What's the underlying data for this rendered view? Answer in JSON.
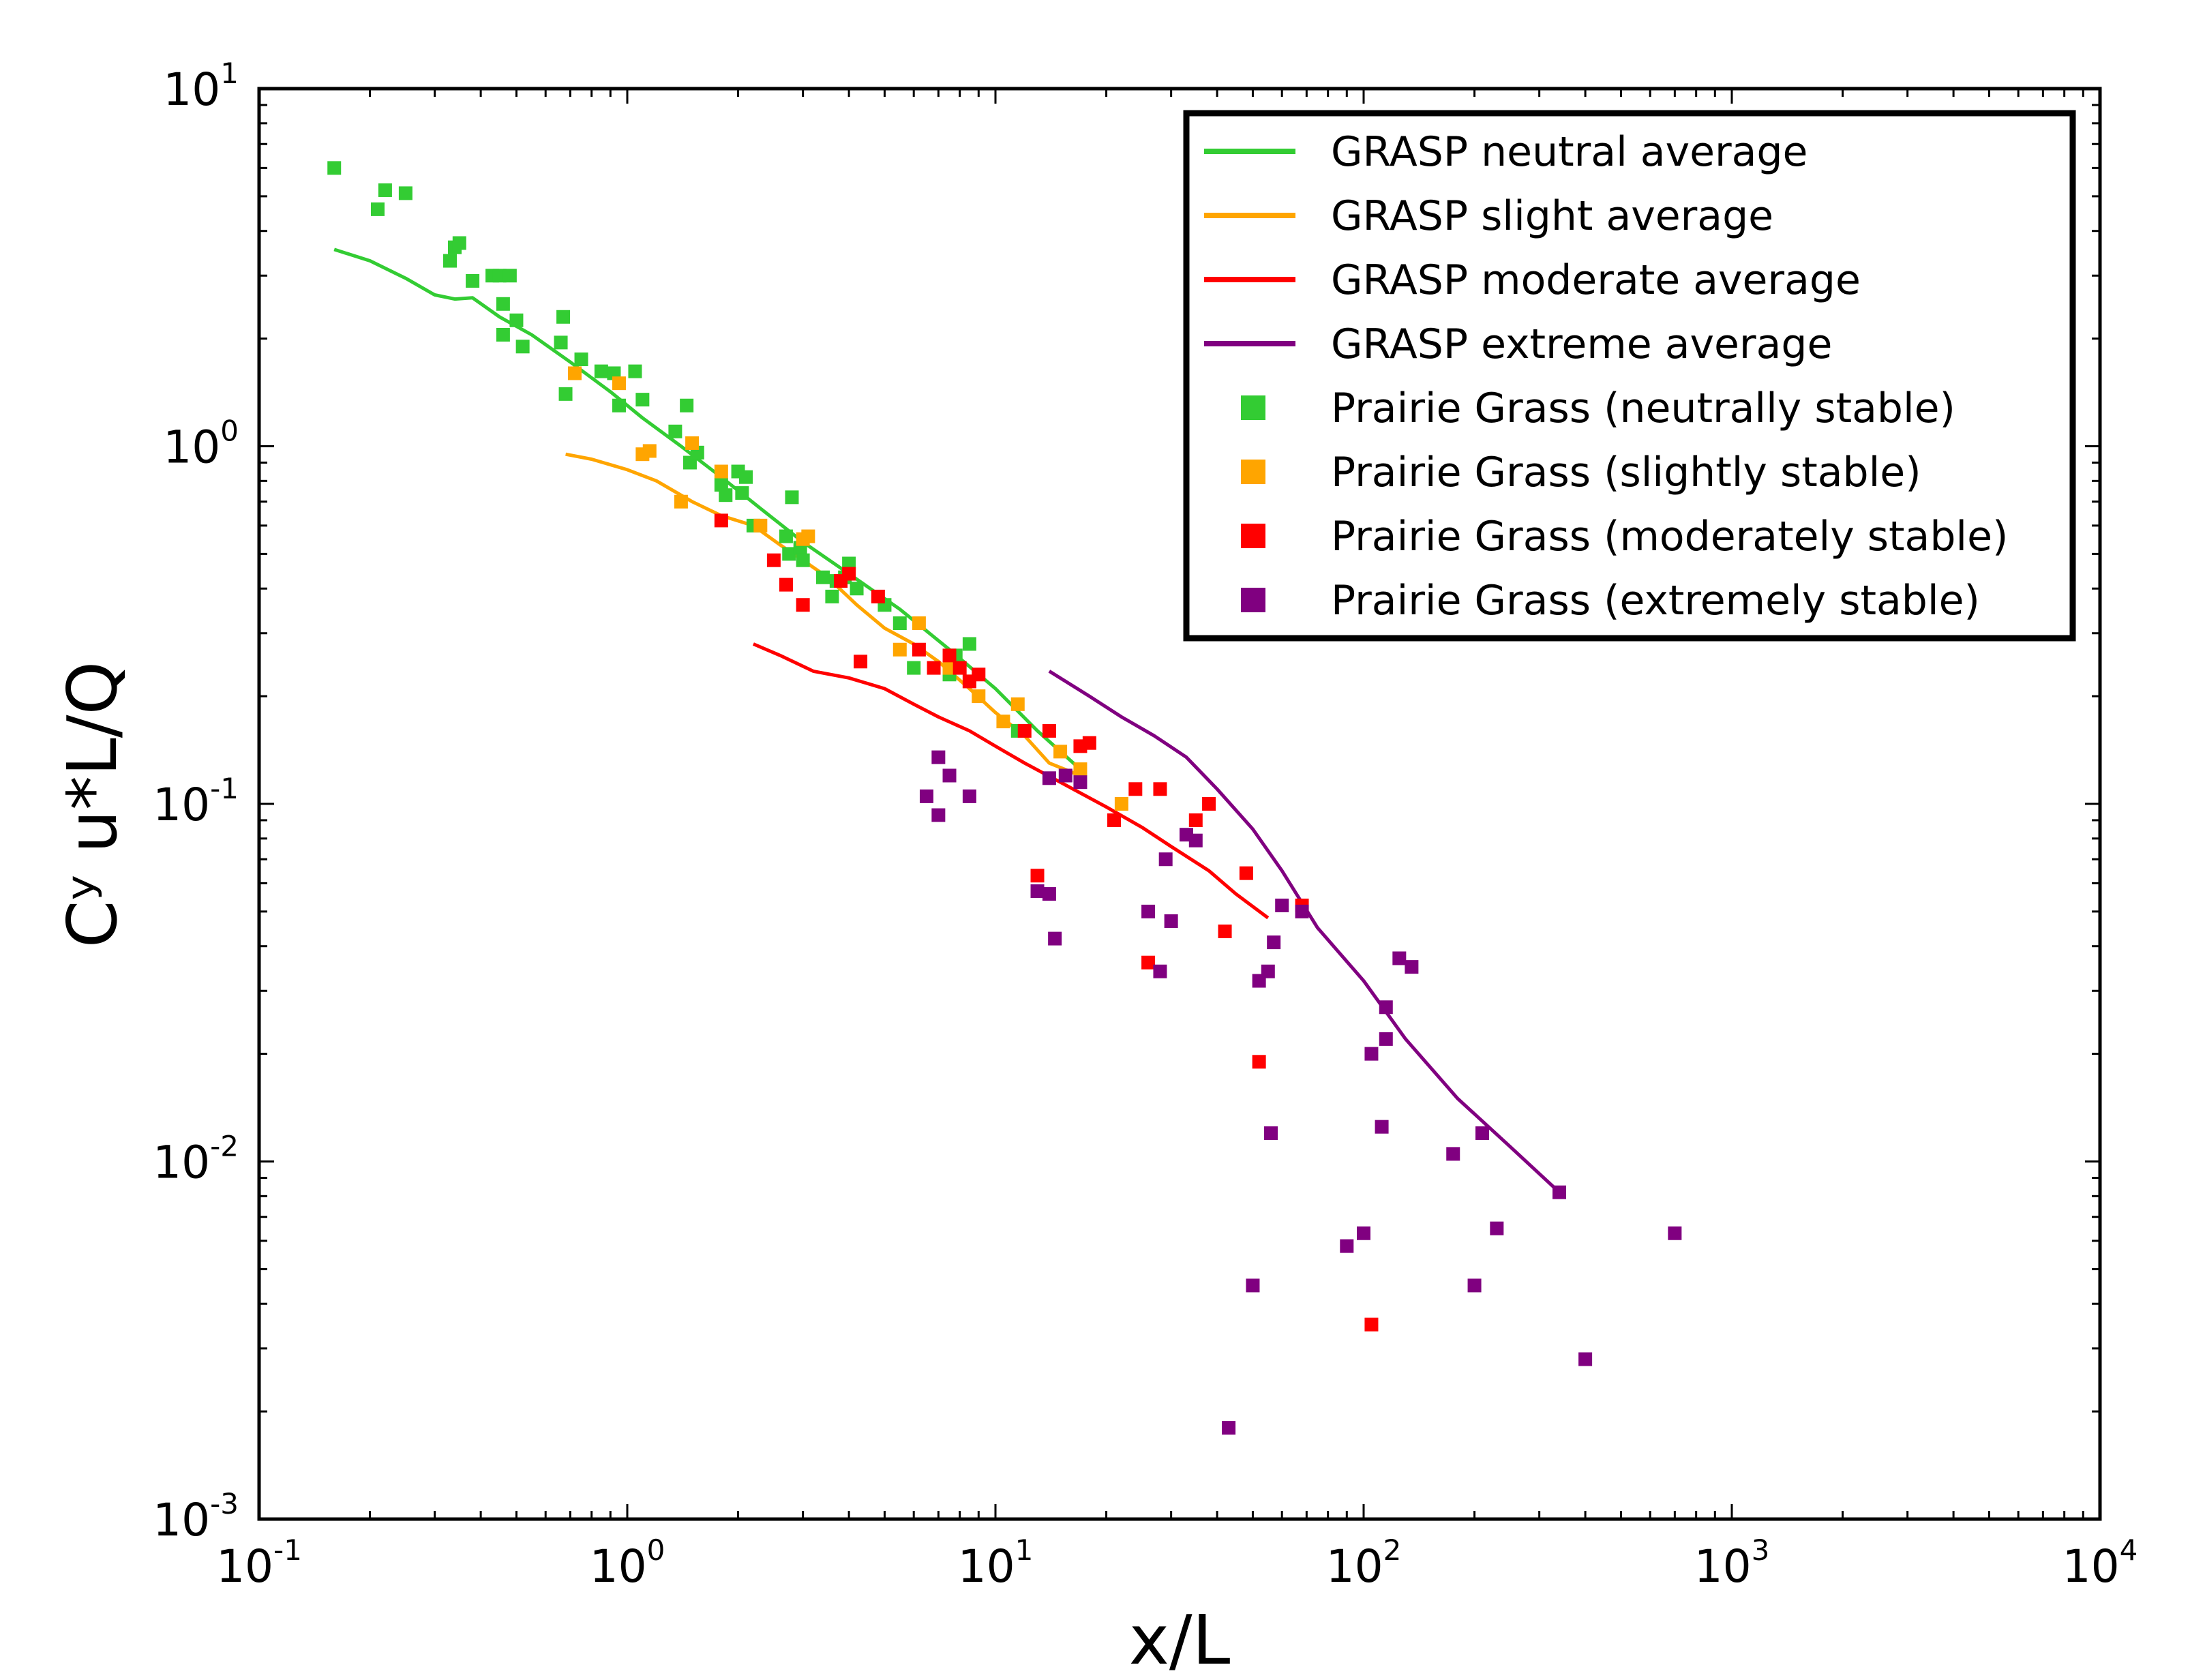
{
  "chart_data": {
    "type": "line+scatter",
    "title": "",
    "xlabel": "x/L",
    "ylabel": "Cʸ u*L/Q",
    "xscale": "log",
    "yscale": "log",
    "xlim": [
      0.1,
      10000
    ],
    "ylim": [
      0.001,
      10
    ],
    "grid": false,
    "legend_position": "top-right",
    "x_ticks": [
      {
        "base": "10",
        "exp": "-1",
        "value": 0.1
      },
      {
        "base": "10",
        "exp": "0",
        "value": 1
      },
      {
        "base": "10",
        "exp": "1",
        "value": 10
      },
      {
        "base": "10",
        "exp": "2",
        "value": 100
      },
      {
        "base": "10",
        "exp": "3",
        "value": 1000
      },
      {
        "base": "10",
        "exp": "4",
        "value": 10000
      }
    ],
    "y_ticks": [
      {
        "base": "10",
        "exp": "-3",
        "value": 0.001
      },
      {
        "base": "10",
        "exp": "-2",
        "value": 0.01
      },
      {
        "base": "10",
        "exp": "-1",
        "value": 0.1
      },
      {
        "base": "10",
        "exp": "0",
        "value": 1
      },
      {
        "base": "10",
        "exp": "1",
        "value": 10
      }
    ],
    "lines": [
      {
        "name": "GRASP neutral average",
        "color": "#33cc33",
        "points": [
          [
            0.16,
            3.55
          ],
          [
            0.2,
            3.3
          ],
          [
            0.25,
            2.95
          ],
          [
            0.3,
            2.65
          ],
          [
            0.34,
            2.58
          ],
          [
            0.38,
            2.6
          ],
          [
            0.45,
            2.3
          ],
          [
            0.55,
            2.05
          ],
          [
            0.7,
            1.72
          ],
          [
            0.9,
            1.42
          ],
          [
            1.1,
            1.2
          ],
          [
            1.4,
            1.0
          ],
          [
            1.8,
            0.82
          ],
          [
            2.3,
            0.67
          ],
          [
            3.0,
            0.54
          ],
          [
            4.0,
            0.44
          ],
          [
            5.5,
            0.35
          ],
          [
            7.5,
            0.27
          ],
          [
            10,
            0.21
          ],
          [
            13,
            0.16
          ],
          [
            17,
            0.125
          ]
        ]
      },
      {
        "name": "GRASP slight average",
        "color": "#ffa500",
        "points": [
          [
            0.68,
            0.95
          ],
          [
            0.8,
            0.92
          ],
          [
            1.0,
            0.86
          ],
          [
            1.2,
            0.8
          ],
          [
            1.5,
            0.7
          ],
          [
            1.8,
            0.64
          ],
          [
            2.2,
            0.6
          ],
          [
            2.6,
            0.53
          ],
          [
            3.0,
            0.48
          ],
          [
            3.5,
            0.43
          ],
          [
            4.2,
            0.36
          ],
          [
            5.0,
            0.31
          ],
          [
            6.0,
            0.28
          ],
          [
            7.0,
            0.25
          ],
          [
            8.5,
            0.21
          ],
          [
            10,
            0.18
          ],
          [
            12,
            0.155
          ],
          [
            14,
            0.13
          ],
          [
            17,
            0.12
          ]
        ]
      },
      {
        "name": "GRASP moderate average",
        "color": "#ff0000",
        "points": [
          [
            2.2,
            0.28
          ],
          [
            2.6,
            0.26
          ],
          [
            3.2,
            0.235
          ],
          [
            4.0,
            0.225
          ],
          [
            5.0,
            0.21
          ],
          [
            6.0,
            0.19
          ],
          [
            7.0,
            0.175
          ],
          [
            8.5,
            0.16
          ],
          [
            10,
            0.145
          ],
          [
            12,
            0.13
          ],
          [
            15,
            0.115
          ],
          [
            20,
            0.098
          ],
          [
            25,
            0.086
          ],
          [
            30,
            0.076
          ],
          [
            38,
            0.065
          ],
          [
            45,
            0.056
          ],
          [
            55,
            0.048
          ]
        ]
      },
      {
        "name": "GRASP extreme average",
        "color": "#800080",
        "points": [
          [
            14,
            0.235
          ],
          [
            18,
            0.2
          ],
          [
            22,
            0.175
          ],
          [
            27,
            0.155
          ],
          [
            33,
            0.135
          ],
          [
            40,
            0.11
          ],
          [
            50,
            0.085
          ],
          [
            60,
            0.065
          ],
          [
            75,
            0.045
          ],
          [
            100,
            0.032
          ],
          [
            130,
            0.022
          ],
          [
            180,
            0.015
          ],
          [
            250,
            0.011
          ],
          [
            340,
            0.0082
          ]
        ]
      }
    ],
    "scatter": [
      {
        "name": "Prairie Grass (neutrally stable)",
        "color": "#33cc33",
        "points": [
          [
            0.16,
            6.0
          ],
          [
            0.21,
            4.6
          ],
          [
            0.22,
            5.2
          ],
          [
            0.25,
            5.1
          ],
          [
            0.33,
            3.3
          ],
          [
            0.34,
            3.6
          ],
          [
            0.35,
            3.7
          ],
          [
            0.38,
            2.9
          ],
          [
            0.43,
            3.0
          ],
          [
            0.45,
            3.0
          ],
          [
            0.48,
            3.0
          ],
          [
            0.46,
            2.5
          ],
          [
            0.46,
            2.05
          ],
          [
            0.5,
            2.25
          ],
          [
            0.52,
            1.9
          ],
          [
            0.66,
            1.95
          ],
          [
            0.67,
            2.3
          ],
          [
            0.68,
            1.4
          ],
          [
            0.75,
            1.75
          ],
          [
            0.85,
            1.62
          ],
          [
            0.92,
            1.6
          ],
          [
            0.95,
            1.3
          ],
          [
            1.05,
            1.62
          ],
          [
            1.1,
            1.35
          ],
          [
            1.35,
            1.1
          ],
          [
            1.45,
            1.3
          ],
          [
            1.48,
            0.9
          ],
          [
            1.55,
            0.96
          ],
          [
            1.8,
            0.78
          ],
          [
            1.85,
            0.73
          ],
          [
            2.0,
            0.85
          ],
          [
            2.1,
            0.82
          ],
          [
            2.05,
            0.74
          ],
          [
            2.2,
            0.6
          ],
          [
            2.7,
            0.56
          ],
          [
            2.75,
            0.5
          ],
          [
            2.8,
            0.72
          ],
          [
            2.95,
            0.52
          ],
          [
            3.0,
            0.48
          ],
          [
            3.4,
            0.43
          ],
          [
            3.6,
            0.38
          ],
          [
            3.7,
            0.42
          ],
          [
            3.9,
            0.43
          ],
          [
            4.0,
            0.47
          ],
          [
            4.2,
            0.4
          ],
          [
            5.0,
            0.36
          ],
          [
            5.5,
            0.32
          ],
          [
            6.0,
            0.24
          ],
          [
            7.5,
            0.23
          ],
          [
            7.8,
            0.26
          ],
          [
            8.5,
            0.28
          ],
          [
            11.5,
            0.16
          ]
        ]
      },
      {
        "name": "Prairie Grass (slightly stable)",
        "color": "#ffa500",
        "points": [
          [
            0.72,
            1.6
          ],
          [
            0.95,
            1.5
          ],
          [
            1.1,
            0.95
          ],
          [
            1.15,
            0.97
          ],
          [
            1.4,
            0.7
          ],
          [
            1.5,
            1.02
          ],
          [
            1.8,
            0.85
          ],
          [
            2.3,
            0.6
          ],
          [
            3.0,
            0.55
          ],
          [
            3.1,
            0.56
          ],
          [
            4.0,
            0.44
          ],
          [
            5.5,
            0.27
          ],
          [
            6.2,
            0.32
          ],
          [
            7.5,
            0.24
          ],
          [
            8.5,
            0.22
          ],
          [
            9.0,
            0.2
          ],
          [
            10.5,
            0.17
          ],
          [
            11.5,
            0.19
          ],
          [
            15,
            0.14
          ],
          [
            17,
            0.125
          ],
          [
            22,
            0.1
          ]
        ]
      },
      {
        "name": "Prairie Grass (moderately stable)",
        "color": "#ff0000",
        "points": [
          [
            1.8,
            0.62
          ],
          [
            2.5,
            0.48
          ],
          [
            2.7,
            0.41
          ],
          [
            3.0,
            0.36
          ],
          [
            3.8,
            0.42
          ],
          [
            4.0,
            0.44
          ],
          [
            4.3,
            0.25
          ],
          [
            4.8,
            0.38
          ],
          [
            6.2,
            0.27
          ],
          [
            6.8,
            0.24
          ],
          [
            7.5,
            0.26
          ],
          [
            8.0,
            0.24
          ],
          [
            8.5,
            0.22
          ],
          [
            9.0,
            0.23
          ],
          [
            12,
            0.16
          ],
          [
            13,
            0.063
          ],
          [
            14,
            0.16
          ],
          [
            17,
            0.145
          ],
          [
            18,
            0.148
          ],
          [
            21,
            0.09
          ],
          [
            24,
            0.11
          ],
          [
            26,
            0.036
          ],
          [
            28,
            0.11
          ],
          [
            35,
            0.09
          ],
          [
            38,
            0.1
          ],
          [
            42,
            0.044
          ],
          [
            48,
            0.064
          ],
          [
            52,
            0.019
          ],
          [
            68,
            0.052
          ],
          [
            105,
            0.0035
          ]
        ]
      },
      {
        "name": "Prairie Grass (extremely stable)",
        "color": "#800080",
        "points": [
          [
            6.5,
            0.105
          ],
          [
            7.0,
            0.135
          ],
          [
            7.0,
            0.093
          ],
          [
            7.5,
            0.12
          ],
          [
            8.5,
            0.105
          ],
          [
            13,
            0.057
          ],
          [
            14,
            0.056
          ],
          [
            14,
            0.118
          ],
          [
            14.5,
            0.042
          ],
          [
            15.5,
            0.12
          ],
          [
            17,
            0.115
          ],
          [
            26,
            0.05
          ],
          [
            28,
            0.034
          ],
          [
            29,
            0.07
          ],
          [
            30,
            0.047
          ],
          [
            33,
            0.082
          ],
          [
            35,
            0.079
          ],
          [
            43,
            0.0018
          ],
          [
            50,
            0.0045
          ],
          [
            52,
            0.032
          ],
          [
            55,
            0.034
          ],
          [
            56,
            0.012
          ],
          [
            57,
            0.041
          ],
          [
            60,
            0.052
          ],
          [
            68,
            0.05
          ],
          [
            90,
            0.0058
          ],
          [
            100,
            0.0063
          ],
          [
            105,
            0.02
          ],
          [
            112,
            0.0125
          ],
          [
            115,
            0.022
          ],
          [
            115,
            0.027
          ],
          [
            125,
            0.037
          ],
          [
            135,
            0.035
          ],
          [
            175,
            0.0105
          ],
          [
            200,
            0.0045
          ],
          [
            210,
            0.012
          ],
          [
            230,
            0.0065
          ],
          [
            340,
            0.0082
          ],
          [
            400,
            0.0028
          ],
          [
            700,
            0.0063
          ]
        ]
      }
    ]
  }
}
